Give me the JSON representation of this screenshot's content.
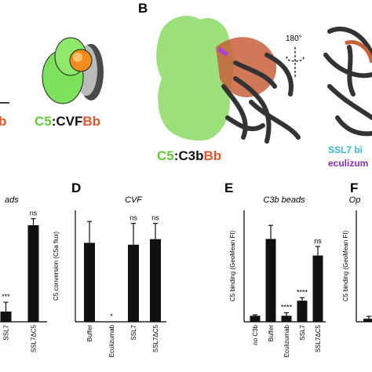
{
  "panel_labels": [
    "B",
    "D",
    "E",
    "F"
  ],
  "top": {
    "cropped_label": "b",
    "complex_label": [
      "C5",
      ":CVF",
      "Bb"
    ],
    "structure_label": [
      "C5",
      ":C3b",
      "Bb"
    ],
    "rotation": "180°",
    "legend": [
      "SSL7 bi",
      "eculizum"
    ]
  },
  "chart_data": [
    {
      "type": "bar",
      "title": "ads",
      "categories": [
        "SSL7",
        "SSL7ΔC5"
      ],
      "values": [
        55,
        520
      ],
      "errors": [
        50,
        35
      ],
      "annotations": [
        "***",
        "ns"
      ],
      "color": "#111111",
      "ylim": [
        0,
        600
      ]
    },
    {
      "type": "bar",
      "title": "CVF",
      "y_label": "C5 conversion (C5a flux)",
      "categories": [
        "Buffer",
        "Eculizumab",
        "SSL7",
        "SSL7ΔC5"
      ],
      "values": [
        425,
        0,
        415,
        445
      ],
      "errors": [
        115,
        null,
        115,
        85
      ],
      "annotations": [
        null,
        "*",
        "ns",
        "ns"
      ],
      "color": "#111111",
      "ylim": [
        0,
        600
      ]
    },
    {
      "type": "bar",
      "title": "C3b beads",
      "y_label": "C5 binding (GeoMean FI)",
      "categories": [
        "no C3b",
        "Buffer",
        "Eculizumab",
        "SSL7",
        "SSL7ΔC5"
      ],
      "values": [
        2,
        27.5,
        2,
        7,
        22
      ],
      "errors": [
        0.3,
        4.5,
        1,
        1,
        3
      ],
      "annotations": [
        null,
        null,
        "****",
        "****",
        "ns"
      ],
      "color": "#111111",
      "ylim": [
        0,
        37
      ]
    },
    {
      "type": "bar",
      "title": "Op",
      "y_label": "C5 binding (GeoMean FI)",
      "categories": [
        null
      ],
      "values": [
        1
      ],
      "errors": [
        0.8
      ],
      "annotations": [
        null
      ],
      "color": "#111111",
      "ylim": [
        0,
        37
      ]
    }
  ]
}
